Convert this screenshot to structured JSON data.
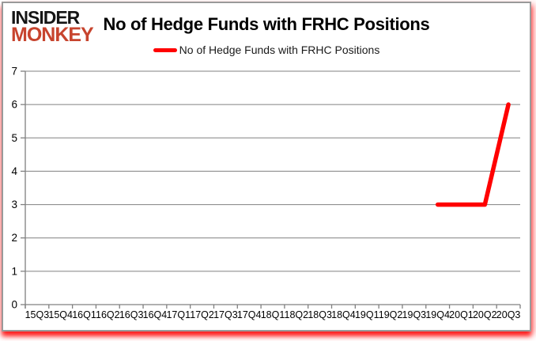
{
  "logo": {
    "line1": "INSIDER",
    "line2": "MONKEY"
  },
  "header": {
    "title": "No of Hedge Funds with FRHC Positions"
  },
  "legend": {
    "label": "No of Hedge Funds with FRHC Positions",
    "marker_color": "#ff0000"
  },
  "colors": {
    "line_red": "#ff0000",
    "logo_red": "#c7442e",
    "grid_gray": "#808080",
    "text_black": "#000000"
  },
  "chart_data": {
    "type": "line",
    "title": "No of Hedge Funds with FRHC Positions",
    "categories": [
      "15Q3",
      "15Q4",
      "16Q1",
      "16Q2",
      "16Q3",
      "16Q4",
      "17Q1",
      "17Q2",
      "17Q3",
      "17Q4",
      "18Q1",
      "18Q2",
      "18Q3",
      "18Q4",
      "19Q1",
      "19Q2",
      "19Q3",
      "19Q4",
      "20Q1",
      "20Q2",
      "20Q3"
    ],
    "series": [
      {
        "name": "No of Hedge Funds with FRHC Positions",
        "color": "#ff0000",
        "values": [
          null,
          null,
          null,
          null,
          null,
          null,
          null,
          null,
          null,
          null,
          null,
          null,
          null,
          null,
          null,
          null,
          null,
          3,
          3,
          3,
          6
        ]
      }
    ],
    "xlabel": "",
    "ylabel": "",
    "ylim": [
      0,
      7
    ],
    "y_ticks": [
      0,
      1,
      2,
      3,
      4,
      5,
      6,
      7
    ],
    "grid": true,
    "legend_position": "top-center"
  }
}
